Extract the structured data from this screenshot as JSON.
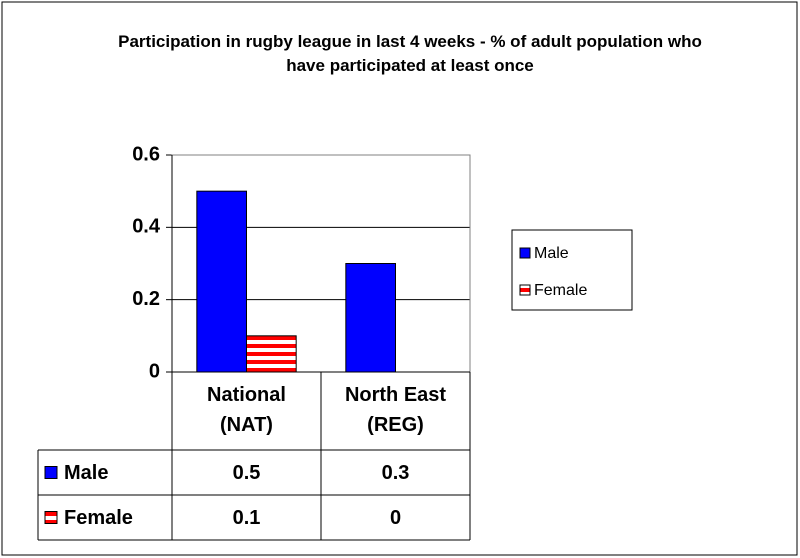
{
  "chart_data": {
    "type": "bar",
    "title": "Participation in rugby league in last 4 weeks - % of adult population who have participated at least once",
    "categories": [
      "National (NAT)",
      "North East (REG)"
    ],
    "series": [
      {
        "name": "Male",
        "color": "#0000ff",
        "values": [
          0.5,
          0.3
        ]
      },
      {
        "name": "Female",
        "color": "#ff0000",
        "pattern": "horizontal-stripes",
        "values": [
          0.1,
          0
        ]
      }
    ],
    "ylim": [
      0,
      0.6
    ],
    "yticks": [
      0,
      0.2,
      0.4,
      0.6
    ],
    "grid": true,
    "legend": "right",
    "data_table": true
  }
}
